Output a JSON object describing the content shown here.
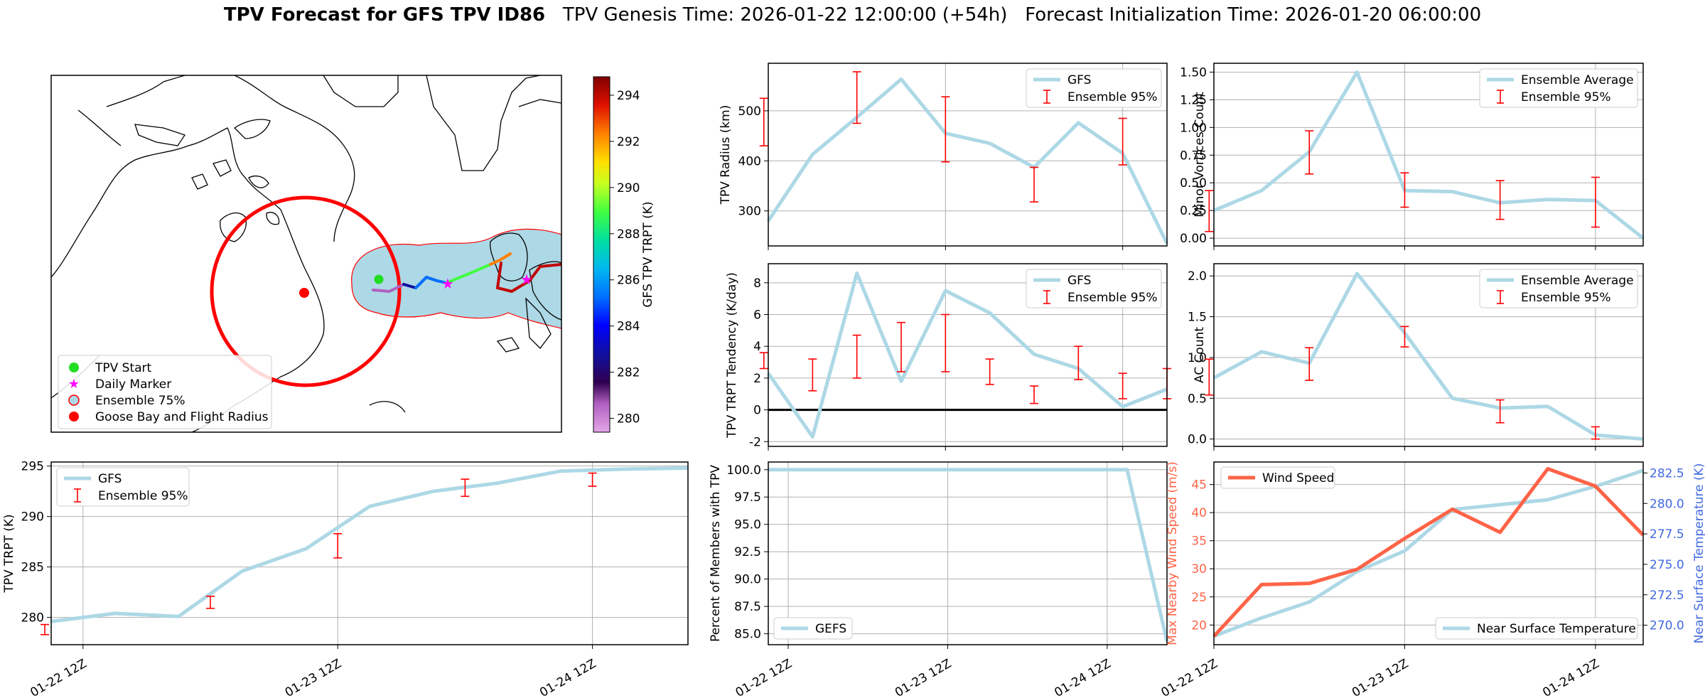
{
  "title": {
    "main": "TPV Forecast for GFS TPV ID86",
    "genesis": "TPV Genesis Time: 2026-01-22 12:00:00 (+54h)",
    "init": "Forecast Initialization Time: 2026-01-20 06:00:00"
  },
  "colors": {
    "gfs": "#add8e6",
    "err": "#ff0000",
    "wind": "#ff6347",
    "temp": "#4169e1",
    "zero": "#000000"
  },
  "time_ticks": [
    "01-22 12Z",
    "01-23 12Z",
    "01-24 12Z"
  ],
  "map": {
    "colorbar_label": "GFS TPV TRPT (K)",
    "colorbar_ticks": [
      "280",
      "282",
      "284",
      "286",
      "288",
      "290",
      "292",
      "294"
    ],
    "colorbar_range": [
      279.4,
      294.8
    ],
    "legend": [
      "TPV Start",
      "Daily Marker",
      "Ensemble 75%",
      "Goose Bay and Flight Radius"
    ]
  },
  "chart_data": [
    {
      "id": "radius",
      "type": "line",
      "ylabel": "TPV Radius (km)",
      "legend": [
        "GFS",
        "Ensemble 95%"
      ],
      "ylim": [
        230,
        595
      ],
      "yticks": [
        "300",
        "400",
        "500"
      ],
      "x": [
        0,
        1,
        2,
        3,
        4,
        5,
        6,
        7,
        8,
        9
      ],
      "values": [
        280,
        413,
        487,
        563,
        455,
        435,
        387,
        476,
        415,
        235
      ],
      "errorbars": [
        [
          -0.1,
          430,
          525
        ],
        [
          2,
          475,
          578
        ],
        [
          4,
          398,
          528
        ],
        [
          6,
          318,
          387
        ],
        [
          8,
          392,
          485
        ]
      ]
    },
    {
      "id": "minor_vortices",
      "type": "line",
      "ylabel": "Minor Vortices Count",
      "legend": [
        "Ensemble Average",
        "Ensemble 95%"
      ],
      "ylim": [
        -0.07,
        1.58
      ],
      "yticks": [
        "0.00",
        "0.25",
        "0.50",
        "0.75",
        "1.00",
        "1.25",
        "1.50"
      ],
      "x": [
        0,
        1,
        2,
        3,
        4,
        5,
        6,
        7,
        8,
        9
      ],
      "values": [
        0.25,
        0.43,
        0.78,
        1.5,
        0.43,
        0.42,
        0.32,
        0.35,
        0.34,
        0.0
      ],
      "errorbars": [
        [
          -0.1,
          0.06,
          0.43
        ],
        [
          2,
          0.58,
          0.97
        ],
        [
          4,
          0.28,
          0.59
        ],
        [
          6,
          0.17,
          0.52
        ],
        [
          8,
          0.1,
          0.55
        ]
      ]
    },
    {
      "id": "tendency",
      "type": "line",
      "ylabel": "TPV TRPT Tendency (K/day)",
      "legend": [
        "GFS",
        "Ensemble 95%"
      ],
      "ylim": [
        -2.3,
        9.2
      ],
      "yticks": [
        "-2",
        "0",
        "2",
        "4",
        "6",
        "8"
      ],
      "zero_line": true,
      "x": [
        0,
        1,
        2,
        3,
        4,
        5,
        6,
        7,
        8,
        9
      ],
      "values": [
        2.3,
        -1.7,
        8.6,
        1.8,
        7.5,
        6.1,
        3.5,
        2.6,
        0.2,
        1.3
      ],
      "errorbars": [
        [
          -0.1,
          2.6,
          3.6
        ],
        [
          1,
          1.2,
          3.2
        ],
        [
          2,
          2.0,
          4.7
        ],
        [
          3,
          2.4,
          5.5
        ],
        [
          4,
          2.4,
          6.0
        ],
        [
          5,
          1.6,
          3.2
        ],
        [
          6,
          0.4,
          1.5
        ],
        [
          7,
          1.9,
          4.0
        ],
        [
          8,
          0.7,
          2.3
        ],
        [
          9,
          0.7,
          2.6
        ]
      ]
    },
    {
      "id": "ac_count",
      "type": "line",
      "ylabel": "AC Count",
      "legend": [
        "Ensemble Average",
        "Ensemble 95%"
      ],
      "ylim": [
        -0.09,
        2.15
      ],
      "yticks": [
        "0.0",
        "0.5",
        "1.0",
        "1.5",
        "2.0"
      ],
      "x": [
        0,
        1,
        2,
        3,
        4,
        5,
        6,
        7,
        8,
        9
      ],
      "values": [
        0.75,
        1.07,
        0.93,
        2.03,
        1.3,
        0.5,
        0.38,
        0.4,
        0.05,
        0.0
      ],
      "errorbars": [
        [
          -0.1,
          0.54,
          0.98
        ],
        [
          2,
          0.72,
          1.12
        ],
        [
          4,
          1.13,
          1.38
        ],
        [
          6,
          0.2,
          0.48
        ],
        [
          8,
          0.0,
          0.15
        ]
      ]
    },
    {
      "id": "trpt",
      "type": "line",
      "ylabel": "TPV TRPT (K)",
      "legend": [
        "GFS",
        "Ensemble 95%"
      ],
      "ylim": [
        277.3,
        295.4
      ],
      "yticks": [
        "280",
        "285",
        "290",
        "295"
      ],
      "x": [
        0,
        1,
        2,
        3,
        4,
        5,
        6,
        7,
        8,
        9,
        10
      ],
      "values": [
        279.6,
        280.4,
        280.1,
        284.6,
        286.8,
        291.0,
        292.5,
        293.3,
        294.5,
        294.7,
        294.8
      ],
      "errorbars": [
        [
          -0.1,
          278.3,
          279.3
        ],
        [
          2.5,
          280.9,
          282.1
        ],
        [
          4.5,
          285.9,
          288.3
        ],
        [
          6.5,
          292.0,
          293.7
        ],
        [
          8.5,
          293.0,
          294.3
        ]
      ]
    },
    {
      "id": "members",
      "type": "line",
      "ylabel": "Percent of Members with TPV",
      "legend": [
        "GEFS"
      ],
      "ylim": [
        84.0,
        100.7
      ],
      "yticks": [
        "85.0",
        "87.5",
        "90.0",
        "92.5",
        "95.0",
        "97.5",
        "100.0"
      ],
      "x": [
        0,
        1,
        2,
        3,
        4,
        5,
        6,
        7,
        8,
        9,
        10
      ],
      "values": [
        100,
        100,
        100,
        100,
        100,
        100,
        100,
        100,
        100,
        100,
        84.3
      ]
    },
    {
      "id": "wind_temp",
      "type": "line",
      "ylabel": "Max Nearby Wind Speed (m/s)",
      "ylabel_right": "Near Surface Temperature (K)",
      "legend_left": "Wind Speed",
      "legend_right": "Near Surface Temperature",
      "ylim": [
        16.5,
        49
      ],
      "ylim_right": [
        268.4,
        283.4
      ],
      "yticks": [
        "20",
        "25",
        "30",
        "35",
        "40",
        "45"
      ],
      "yticks_right": [
        "270.0",
        "272.5",
        "275.0",
        "277.5",
        "280.0",
        "282.5"
      ],
      "x": [
        0,
        1,
        2,
        3,
        4,
        5,
        6,
        7,
        8,
        9
      ],
      "wind": [
        18.0,
        27.2,
        27.4,
        29.9,
        35.4,
        40.6,
        36.5,
        47.8,
        44.7,
        36.0
      ],
      "temp": [
        269.1,
        270.6,
        271.9,
        274.4,
        276.1,
        279.5,
        279.9,
        280.3,
        281.4,
        282.7
      ]
    }
  ]
}
